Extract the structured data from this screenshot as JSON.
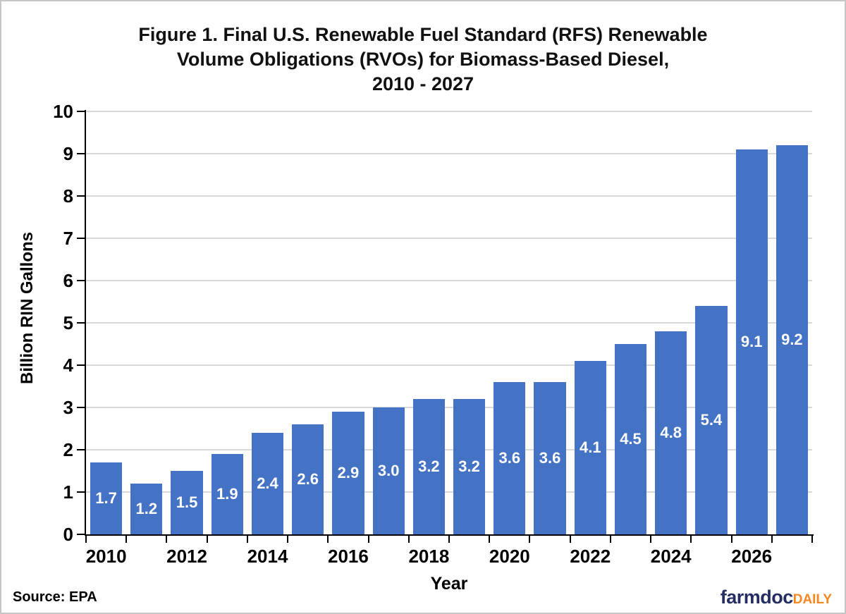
{
  "header": {
    "title_lines": [
      "Figure 1. Final U.S. Renewable Fuel Standard (RFS) Renewable",
      "Volume Obligations (RVOs) for Biomass-Based Diesel,",
      "2010 - 2027"
    ]
  },
  "chart_data": {
    "type": "bar",
    "title": "Figure 1. Final U.S. Renewable Fuel Standard (RFS) Renewable Volume Obligations (RVOs) for Biomass-Based Diesel, 2010 - 2027",
    "categories": [
      "2010",
      "2011",
      "2012",
      "2013",
      "2014",
      "2015",
      "2016",
      "2017",
      "2018",
      "2019",
      "2020",
      "2021",
      "2022",
      "2023",
      "2024",
      "2025",
      "2026",
      "2027"
    ],
    "values": [
      1.7,
      1.2,
      1.5,
      1.9,
      2.4,
      2.6,
      2.9,
      3.0,
      3.2,
      3.2,
      3.6,
      3.6,
      4.1,
      4.5,
      4.8,
      5.4,
      9.1,
      9.2
    ],
    "bar_labels": [
      "1.7",
      "1.2",
      "1.5",
      "1.9",
      "2.4",
      "2.6",
      "2.9",
      "3.0",
      "3.2",
      "3.2",
      "3.6",
      "3.6",
      "4.1",
      "4.5",
      "4.8",
      "5.4",
      "9.1",
      "9.2"
    ],
    "x_tick_labels": [
      "2010",
      "2012",
      "2014",
      "2016",
      "2018",
      "2020",
      "2022",
      "2024",
      "2026"
    ],
    "y_ticks": [
      0,
      1,
      2,
      3,
      4,
      5,
      6,
      7,
      8,
      9,
      10
    ],
    "xlabel": "Year",
    "ylabel": "Billion RIN Gallons",
    "ylim": [
      0,
      10
    ],
    "grid": "horizontal",
    "legend": "none",
    "colors": {
      "bar": "#4472C4",
      "bar_label": "#FFFFFF",
      "gridline": "#D9D9D9",
      "axis": "#000000"
    }
  },
  "footer": {
    "source": "Source: EPA",
    "logo": {
      "primary": "farmdoc",
      "secondary": "DAILY",
      "primary_color": "#252E62",
      "secondary_color": "#F6871F"
    }
  }
}
